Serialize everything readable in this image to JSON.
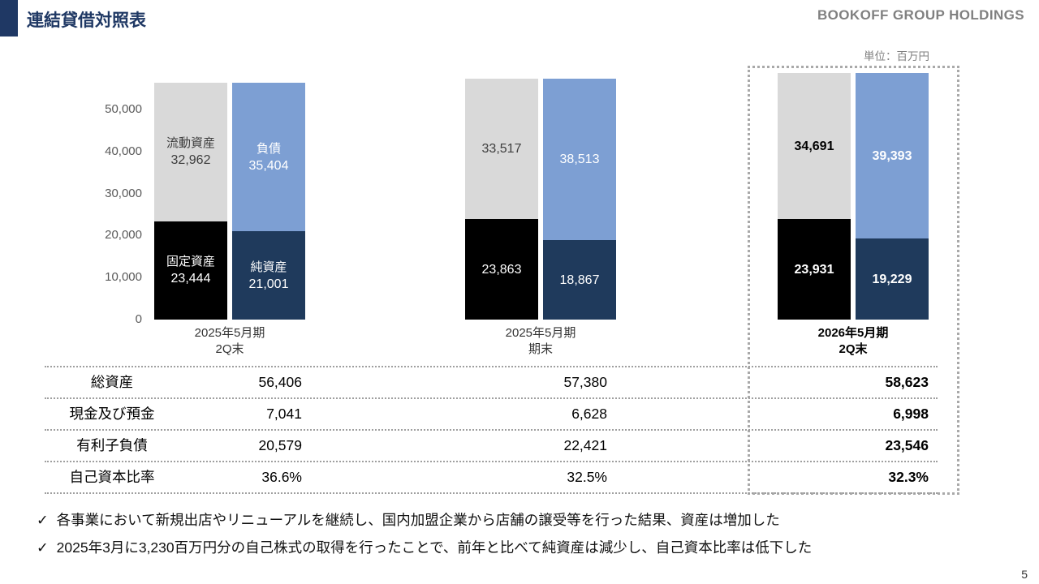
{
  "header": {
    "title": "連結貸借対照表",
    "brand": "BOOKOFF GROUP HOLDINGS"
  },
  "unit_label": "単位：百万円",
  "chart_data": {
    "type": "bar",
    "stacked": true,
    "unit": "百万円",
    "ylim": [
      0,
      58623
    ],
    "yticks": [
      0,
      10000,
      20000,
      30000,
      40000,
      50000
    ],
    "ytick_labels": [
      "0",
      "10,000",
      "20,000",
      "30,000",
      "40,000",
      "50,000"
    ],
    "segment_labels": {
      "current_assets": "流動資産",
      "fixed_assets": "固定資産",
      "liabilities": "負債",
      "net_assets": "純資産"
    },
    "colors": {
      "current_assets": "#d9d9d9",
      "fixed_assets": "#000000",
      "liabilities": "#7d9fd3",
      "net_assets": "#1f3a5c"
    },
    "groups": [
      {
        "period_line1": "2025年5月期",
        "period_line2": "2Q末",
        "highlighted": false,
        "show_segment_labels": true,
        "current_assets": 32962,
        "fixed_assets": 23444,
        "liabilities": 35404,
        "net_assets": 21001
      },
      {
        "period_line1": "2025年5月期",
        "period_line2": "期末",
        "highlighted": false,
        "show_segment_labels": false,
        "current_assets": 33517,
        "fixed_assets": 23863,
        "liabilities": 38513,
        "net_assets": 18867
      },
      {
        "period_line1": "2026年5月期",
        "period_line2": "2Q末",
        "highlighted": true,
        "show_segment_labels": false,
        "current_assets": 34691,
        "fixed_assets": 23931,
        "liabilities": 39393,
        "net_assets": 19229
      }
    ]
  },
  "table": {
    "rows": [
      {
        "label": "総資産",
        "values": [
          "56,406",
          "57,380",
          "58,623"
        ]
      },
      {
        "label": "現金及び預金",
        "values": [
          "7,041",
          "6,628",
          "6,998"
        ]
      },
      {
        "label": "有利子負債",
        "values": [
          "20,579",
          "22,421",
          "23,546"
        ]
      },
      {
        "label": "自己資本比率",
        "values": [
          "36.6%",
          "32.5%",
          "32.3%"
        ]
      }
    ]
  },
  "notes_bullet": "✓",
  "notes": [
    "各事業において新規出店やリニューアルを継続し、国内加盟企業から店舗の譲受等を行った結果、資産は増加した",
    "2025年3月に3,230百万円分の自己株式の取得を行ったことで、前年と比べて純資産は減少し、自己資本比率は低下した"
  ],
  "page_number": "5"
}
